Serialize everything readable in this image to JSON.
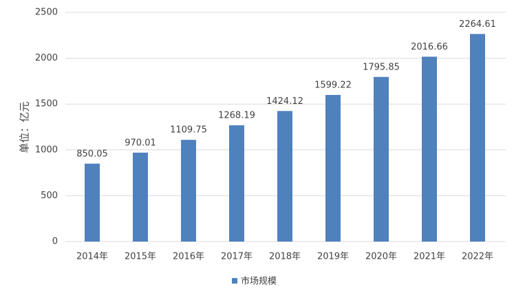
{
  "chart_data": {
    "type": "bar",
    "y_label": "单位：亿元",
    "categories": [
      "2014年",
      "2015年",
      "2016年",
      "2017年",
      "2018年",
      "2019年",
      "2020年",
      "2021年",
      "2022年"
    ],
    "series": [
      {
        "name": "市场规模",
        "color": "#4f81bd",
        "values": [
          850.05,
          970.01,
          1109.75,
          1268.19,
          1424.12,
          1599.22,
          1795.85,
          2016.66,
          2264.61
        ]
      }
    ],
    "ylim": [
      0,
      2500
    ],
    "yticks": [
      0,
      500,
      1000,
      1500,
      2000,
      2500
    ],
    "grid": true,
    "legend": "bottom"
  }
}
